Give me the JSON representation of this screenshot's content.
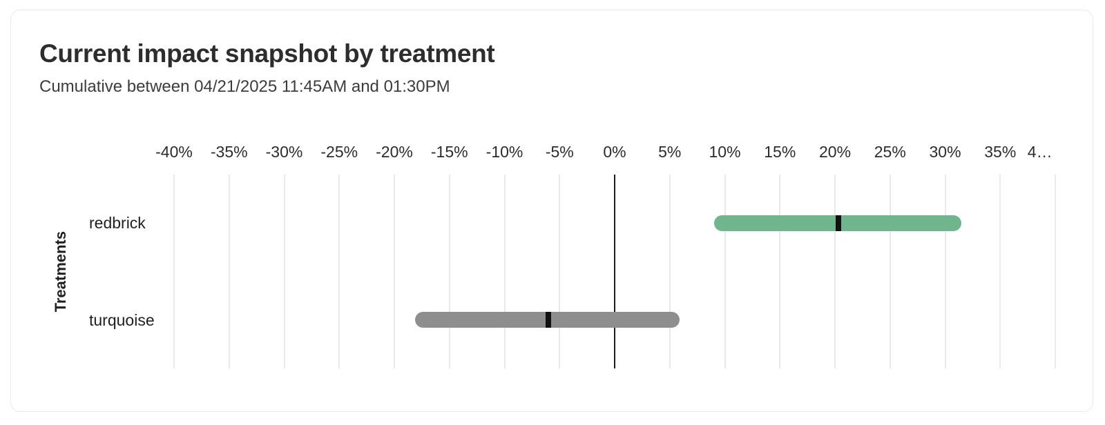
{
  "card": {
    "title": "Current impact snapshot by treatment",
    "subtitle": "Cumulative between 04/21/2025 11:45AM and 01:30PM"
  },
  "chart_data": {
    "type": "bar",
    "subtype": "horizontal-interval-with-point-estimate",
    "title": "Current impact snapshot by treatment",
    "subtitle": "Cumulative between 04/21/2025 11:45AM and 01:30PM",
    "ylabel": "Treatments",
    "xlabel": "",
    "unit": "%",
    "categories": [
      "redbrick",
      "turquoise"
    ],
    "series": [
      {
        "name": "redbrick",
        "estimate": 20.3,
        "ci_low": 9.0,
        "ci_high": 31.5,
        "color": "#6FB68C"
      },
      {
        "name": "turquoise",
        "estimate": -6.0,
        "ci_low": -18.1,
        "ci_high": 5.9,
        "color": "#8E8E8E"
      }
    ],
    "x_axis": {
      "min": -40,
      "max": 41,
      "gridlines": [
        -40,
        -35,
        -30,
        -25,
        -20,
        -15,
        -10,
        -5,
        0,
        5,
        10,
        15,
        20,
        25,
        30,
        35,
        40
      ],
      "ticks": [
        {
          "value": -40,
          "label": "-40%"
        },
        {
          "value": -35,
          "label": "-35%"
        },
        {
          "value": -30,
          "label": "-30%"
        },
        {
          "value": -25,
          "label": "-25%"
        },
        {
          "value": -20,
          "label": "-20%"
        },
        {
          "value": -15,
          "label": "-15%"
        },
        {
          "value": -10,
          "label": "-10%"
        },
        {
          "value": -5,
          "label": "-5%"
        },
        {
          "value": 0,
          "label": "0%"
        },
        {
          "value": 5,
          "label": "5%"
        },
        {
          "value": 10,
          "label": "10%"
        },
        {
          "value": 15,
          "label": "15%"
        },
        {
          "value": 20,
          "label": "20%"
        },
        {
          "value": 25,
          "label": "25%"
        },
        {
          "value": 30,
          "label": "30%"
        },
        {
          "value": 35,
          "label": "35%"
        },
        {
          "value": 38.6,
          "label": "4…"
        }
      ]
    },
    "layout": {
      "grid": true,
      "legend": false,
      "gridline_color": "#E9E9E9",
      "zero_line_color": "#1A1A1A",
      "marker_color": "#111111"
    }
  }
}
